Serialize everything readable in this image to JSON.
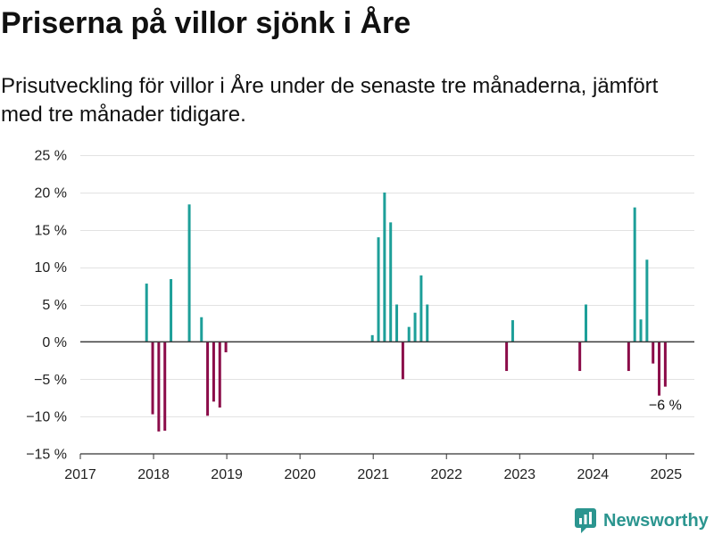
{
  "colors": {
    "positive": "#1d9f99",
    "negative": "#8b0c49",
    "grid": "#e2e2e2",
    "zero": "#3a3a3a",
    "axis": "#333333",
    "text": "#222222",
    "brand": "#2b958f"
  },
  "chart_data": {
    "type": "bar",
    "title": "Priserna på villor sjönk i Åre",
    "subtitle": "Prisutveckling för villor i Åre under de senaste tre månaderna, jämfört med tre månader tidigare.",
    "xlim": [
      "2017-01-01",
      "2025-05-20"
    ],
    "ylim": [
      -15,
      25
    ],
    "grid": true,
    "xticks": [
      "2017",
      "2018",
      "2019",
      "2020",
      "2021",
      "2022",
      "2023",
      "2024",
      "2025"
    ],
    "yticks": [
      -15,
      -10,
      -5,
      0,
      5,
      10,
      15,
      20,
      25
    ],
    "ytick_labels": [
      "−15 %",
      "−10 %",
      "−5 %",
      "0 %",
      "5 %",
      "10 %",
      "15 %",
      "20 %",
      "25 %"
    ],
    "x": [
      "2017-12",
      "2018-01",
      "2018-02",
      "2018-03",
      "2018-04",
      "2018-07",
      "2018-09",
      "2018-10",
      "2018-11",
      "2018-12",
      "2019-01",
      "2021-01",
      "2021-02",
      "2021-03",
      "2021-04",
      "2021-05",
      "2021-06",
      "2021-07",
      "2021-08",
      "2021-09",
      "2021-10",
      "2022-11",
      "2022-12",
      "2023-11",
      "2023-12",
      "2024-07",
      "2024-08",
      "2024-09",
      "2024-10",
      "2024-11",
      "2024-12",
      "2025-01"
    ],
    "values": [
      7.8,
      -9.7,
      -12.0,
      -11.9,
      8.4,
      18.4,
      3.3,
      -9.9,
      -8.0,
      -8.8,
      -1.4,
      0.9,
      14.0,
      20.0,
      16.0,
      5.0,
      -5.0,
      2.0,
      3.9,
      8.9,
      5.0,
      -3.9,
      2.9,
      -3.9,
      5.0,
      -3.9,
      18.0,
      3.0,
      11.0,
      -2.9,
      -7.2,
      -6.0
    ],
    "annotations": [
      {
        "x": "2025-01",
        "y": -6.0,
        "text": "−6 %"
      }
    ]
  },
  "logo": {
    "text": "Newsworthy",
    "icon": "newsworthy-logo-icon"
  }
}
